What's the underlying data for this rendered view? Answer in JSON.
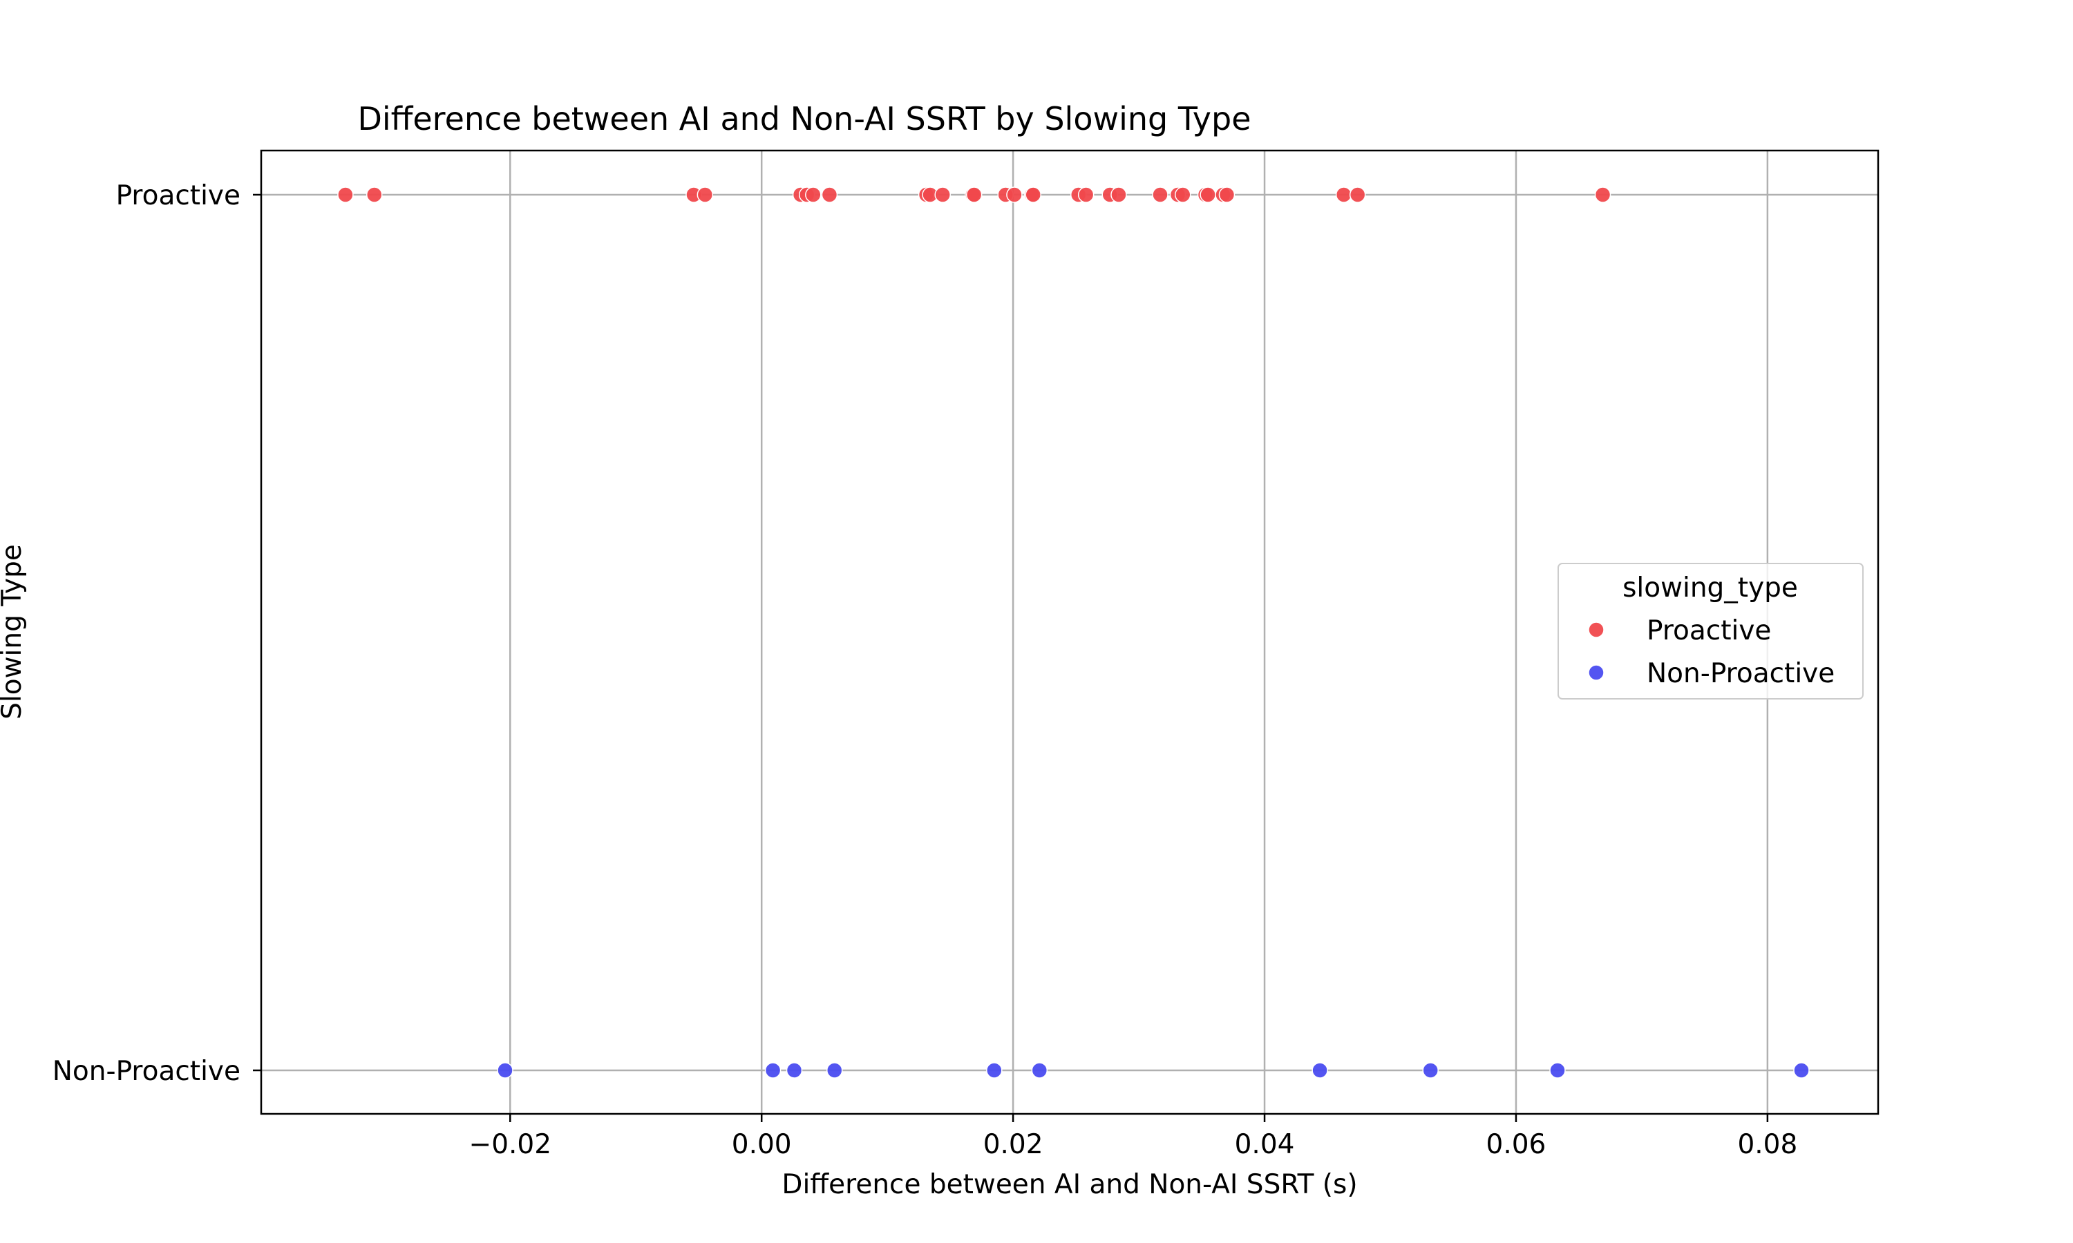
{
  "chart_data": {
    "type": "scatter",
    "title": "Difference between AI and Non-AI SSRT by Slowing Type",
    "xlabel": "Difference between AI and Non-AI SSRT (s)",
    "ylabel": "Slowing Type",
    "xlim": [
      -0.0398,
      0.0888
    ],
    "x_ticks": [
      -0.02,
      0.0,
      0.02,
      0.04,
      0.06,
      0.08
    ],
    "x_tick_labels": [
      "−0.02",
      "0.00",
      "0.02",
      "0.04",
      "0.06",
      "0.08"
    ],
    "categories": [
      "Proactive",
      "Non-Proactive"
    ],
    "grid": true,
    "legend": {
      "title": "slowing_type",
      "placement": "center-right"
    },
    "series": [
      {
        "name": "Proactive",
        "color": "#f0484c",
        "x": [
          -0.0331,
          -0.0308,
          -0.0054,
          -0.0045,
          0.0031,
          0.0036,
          0.0041,
          0.0054,
          0.0131,
          0.0134,
          0.0144,
          0.0168,
          0.0169,
          0.0194,
          0.0201,
          0.0215,
          0.0216,
          0.0252,
          0.0258,
          0.0277,
          0.0284,
          0.0317,
          0.0331,
          0.0335,
          0.0353,
          0.0355,
          0.0367,
          0.037,
          0.0463,
          0.0474,
          0.0669
        ]
      },
      {
        "name": "Non-Proactive",
        "color": "#4a4cf0",
        "x": [
          -0.0204,
          0.0009,
          0.0026,
          0.0058,
          0.0185,
          0.0221,
          0.0444,
          0.0532,
          0.0633,
          0.0827
        ]
      }
    ]
  }
}
